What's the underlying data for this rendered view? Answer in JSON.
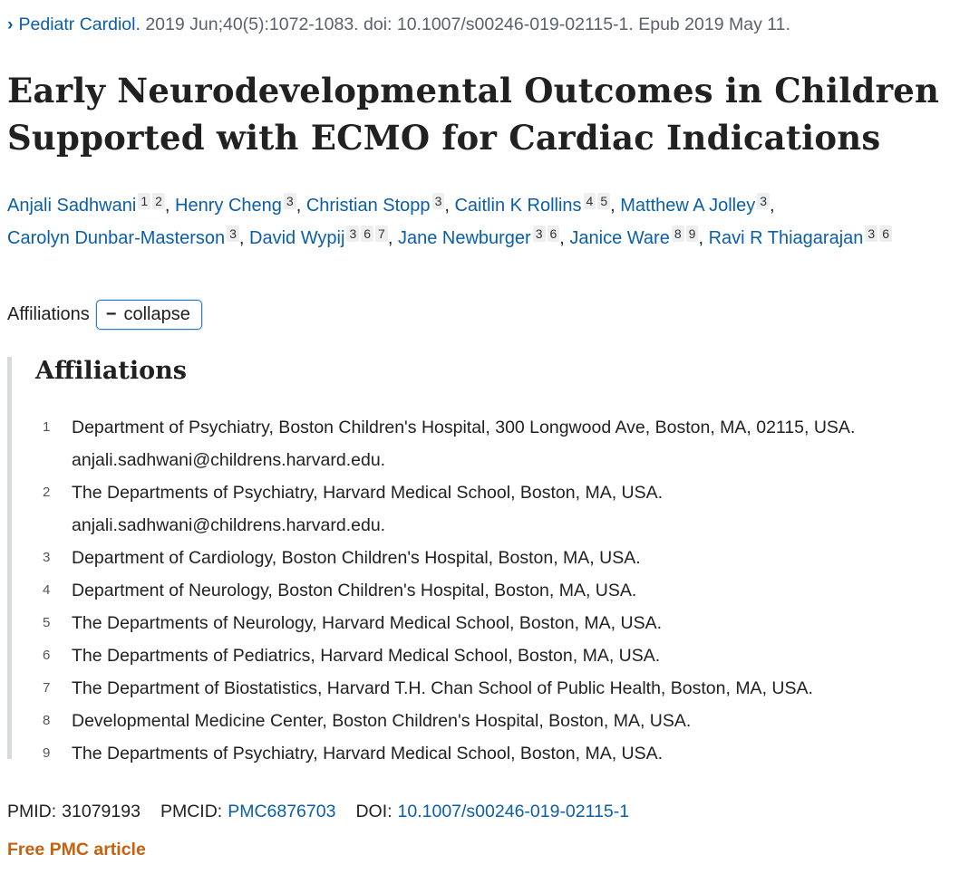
{
  "citation": {
    "journal": "Pediatr Cardiol.",
    "details": "2019 Jun;40(5):1072-1083. doi: 10.1007/s00246-019-02115-1. Epub 2019 May 11."
  },
  "title": "Early Neurodevelopmental Outcomes in Children Supported with ECMO for Cardiac Indications",
  "authors": [
    {
      "name": "Anjali Sadhwani",
      "affs": [
        "1",
        "2"
      ]
    },
    {
      "name": "Henry Cheng",
      "affs": [
        "3"
      ]
    },
    {
      "name": "Christian Stopp",
      "affs": [
        "3"
      ]
    },
    {
      "name": "Caitlin K Rollins",
      "affs": [
        "4",
        "5"
      ]
    },
    {
      "name": "Matthew A Jolley",
      "affs": [
        "3"
      ]
    },
    {
      "name": "Carolyn Dunbar-Masterson",
      "affs": [
        "3"
      ]
    },
    {
      "name": "David Wypij",
      "affs": [
        "3",
        "6",
        "7"
      ]
    },
    {
      "name": "Jane Newburger",
      "affs": [
        "3",
        "6"
      ]
    },
    {
      "name": "Janice Ware",
      "affs": [
        "8",
        "9"
      ]
    },
    {
      "name": "Ravi R Thiagarajan",
      "affs": [
        "3",
        "6"
      ]
    }
  ],
  "affiliations_toggle": {
    "label": "Affiliations",
    "button_icon": "minus-icon",
    "button_label": "collapse"
  },
  "affiliations": {
    "heading": "Affiliations",
    "items": [
      {
        "num": "1",
        "text": "Department of Psychiatry, Boston Children's Hospital, 300 Longwood Ave, Boston, MA, 02115, USA. anjali.sadhwani@childrens.harvard.edu."
      },
      {
        "num": "2",
        "text": "The Departments of Psychiatry, Harvard Medical School, Boston, MA, USA. anjali.sadhwani@childrens.harvard.edu."
      },
      {
        "num": "3",
        "text": "Department of Cardiology, Boston Children's Hospital, Boston, MA, USA."
      },
      {
        "num": "4",
        "text": "Department of Neurology, Boston Children's Hospital, Boston, MA, USA."
      },
      {
        "num": "5",
        "text": "The Departments of Neurology, Harvard Medical School, Boston, MA, USA."
      },
      {
        "num": "6",
        "text": "The Departments of Pediatrics, Harvard Medical School, Boston, MA, USA."
      },
      {
        "num": "7",
        "text": "The Department of Biostatistics, Harvard T.H. Chan School of Public Health, Boston, MA, USA."
      },
      {
        "num": "8",
        "text": "Developmental Medicine Center, Boston Children's Hospital, Boston, MA, USA."
      },
      {
        "num": "9",
        "text": "The Departments of Psychiatry, Harvard Medical School, Boston, MA, USA."
      }
    ]
  },
  "identifiers": {
    "pmid_label": "PMID:",
    "pmid": "31079193",
    "pmcid_label": "PMCID:",
    "pmcid": "PMC6876703",
    "doi_label": "DOI:",
    "doi": "10.1007/s00246-019-02115-1"
  },
  "free_pmc": "Free PMC article",
  "colors": {
    "link": "#0b5ea8",
    "free_pmc": "#c5610f",
    "text": "#212121"
  }
}
